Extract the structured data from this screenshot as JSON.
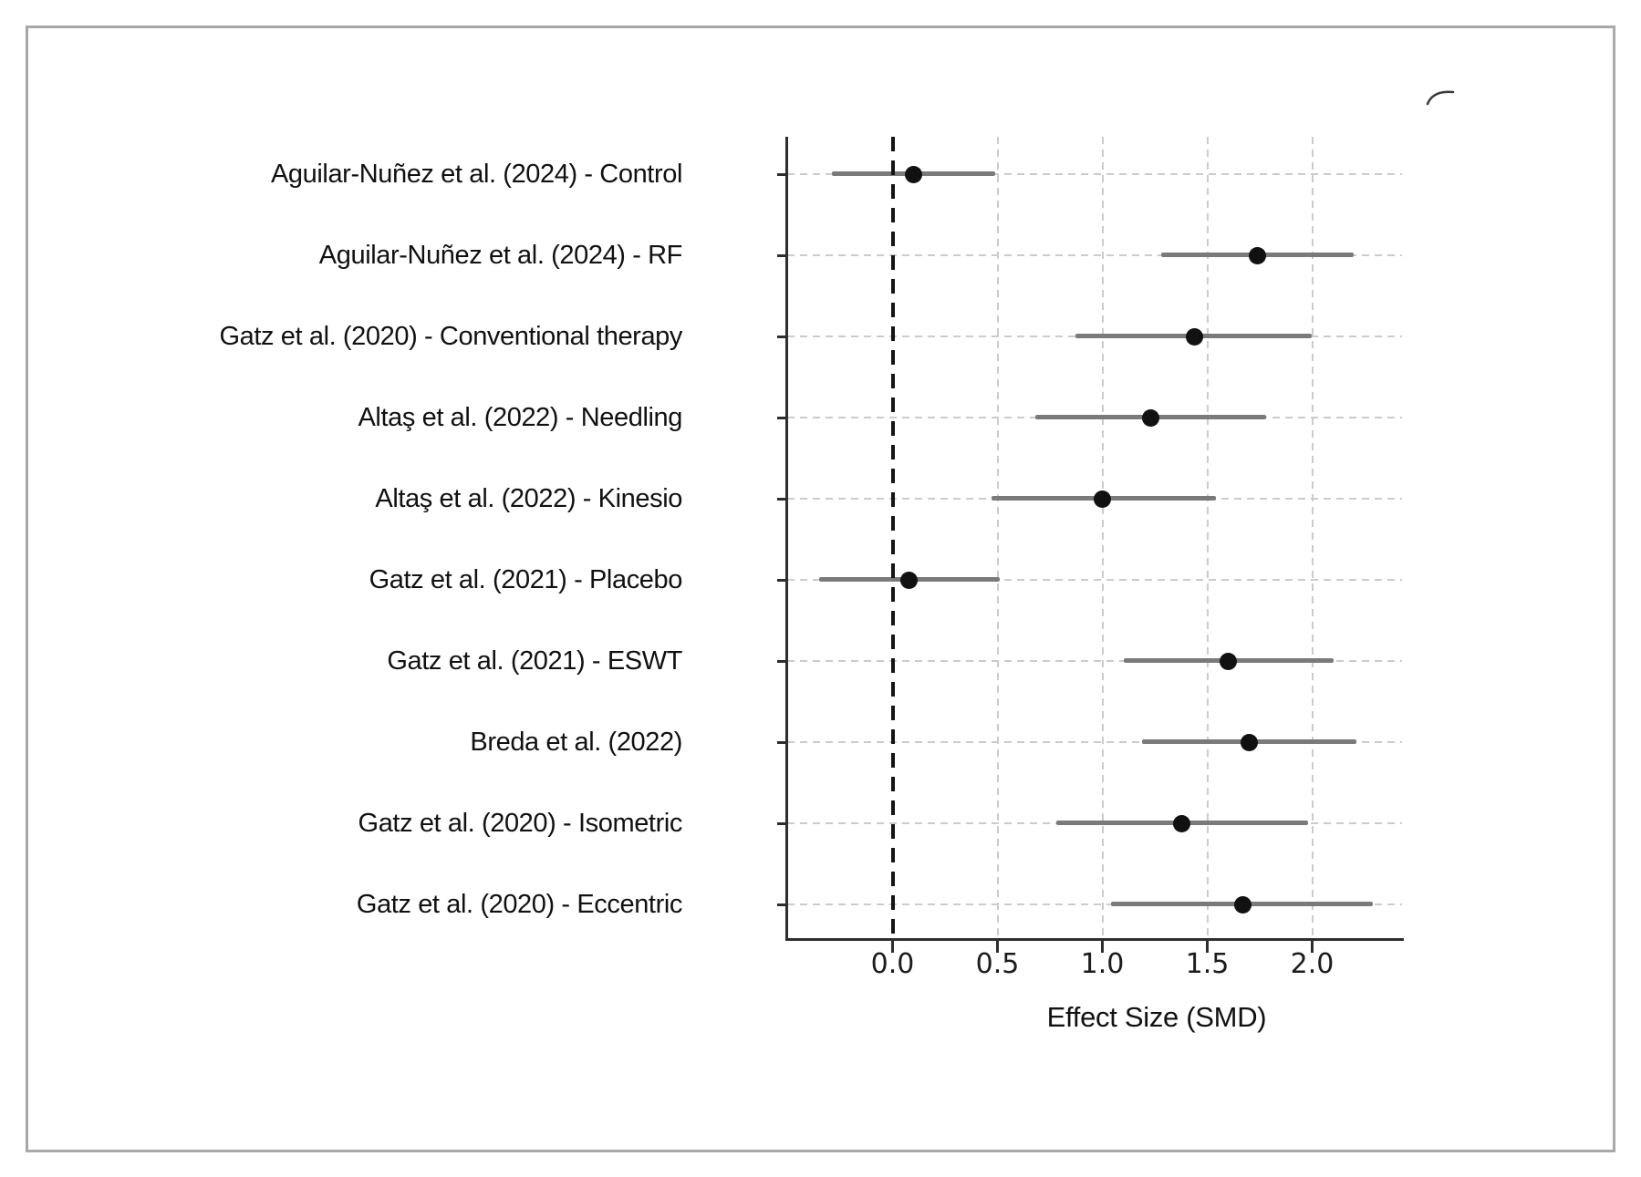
{
  "figure": {
    "background": "#ffffff",
    "border_color": "#a8a8a8"
  },
  "chart_data": {
    "type": "scatter",
    "subtype": "forest-plot",
    "title": "",
    "xlabel": "Effect Size (SMD)",
    "ylabel": "",
    "x_ticks": [
      0.0,
      0.5,
      1.0,
      1.5,
      2.0
    ],
    "xlim": [
      -0.49,
      2.43
    ],
    "reference_line_x": 0.0,
    "grid": true,
    "legend": "none",
    "studies": [
      {
        "label": "Aguilar-Nuñez et al. (2024) - Control",
        "effect": 0.1,
        "ci_low": -0.29,
        "ci_high": 0.49
      },
      {
        "label": "Aguilar-Nuñez et al. (2024) - RF",
        "effect": 1.74,
        "ci_low": 1.28,
        "ci_high": 2.2
      },
      {
        "label": "Gatz et al. (2020) - Conventional therapy",
        "effect": 1.44,
        "ci_low": 0.87,
        "ci_high": 2.0
      },
      {
        "label": "Altaş et al. (2022) - Needling",
        "effect": 1.23,
        "ci_low": 0.68,
        "ci_high": 1.78
      },
      {
        "label": "Altaş et al. (2022) - Kinesio",
        "effect": 1.0,
        "ci_low": 0.47,
        "ci_high": 1.54
      },
      {
        "label": "Gatz et al. (2021) - Placebo",
        "effect": 0.08,
        "ci_low": -0.35,
        "ci_high": 0.51
      },
      {
        "label": "Gatz et al. (2021) - ESWT",
        "effect": 1.6,
        "ci_low": 1.1,
        "ci_high": 2.1
      },
      {
        "label": "Breda et al. (2022)",
        "effect": 1.7,
        "ci_low": 1.19,
        "ci_high": 2.21
      },
      {
        "label": "Gatz et al. (2020) - Isometric",
        "effect": 1.38,
        "ci_low": 0.78,
        "ci_high": 1.98
      },
      {
        "label": "Gatz et al. (2020) - Eccentric",
        "effect": 1.67,
        "ci_low": 1.04,
        "ci_high": 2.29
      }
    ],
    "colors": {
      "point": "#111111",
      "ci_line": "#7a7a7a",
      "grid_line": "#cbcbcb",
      "reference_line": "#141414",
      "axis": "#2e2e2e",
      "text": "#111111"
    }
  }
}
